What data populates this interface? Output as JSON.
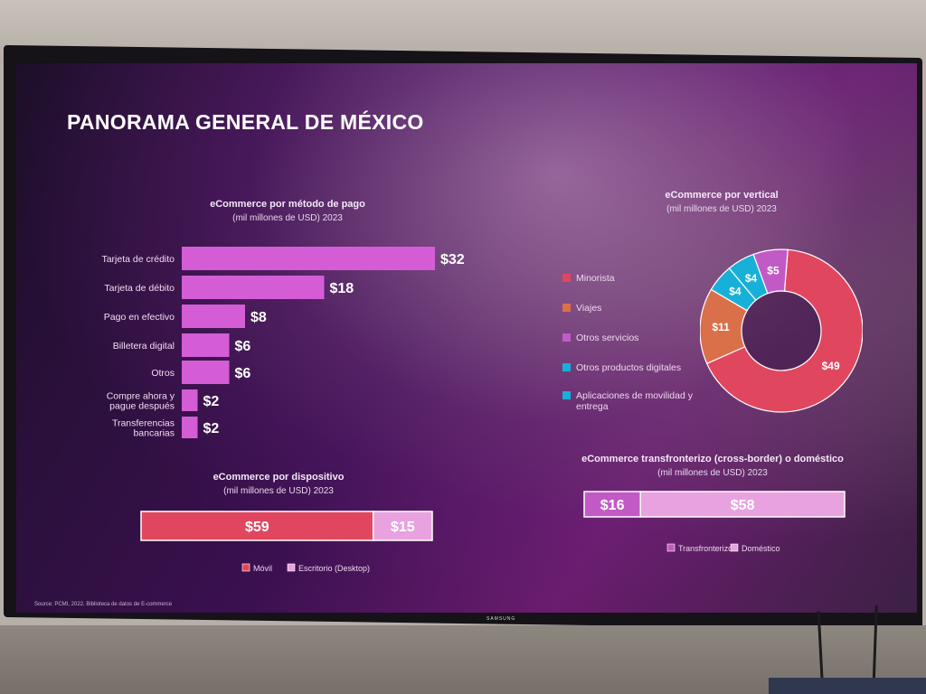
{
  "slide": {
    "title": "PANORAMA GENERAL DE MÉXICO",
    "source": "Source: PCMI, 2022. Biblioteca de datos de E-commerce",
    "brand": "SAMSUNG"
  },
  "colors": {
    "pink_bar": "#d45dd6",
    "red": "#e0475f",
    "orange": "#d9704a",
    "light_pink": "#e8a2e0",
    "cyan": "#18b0d8",
    "purple": "#c25ac6"
  },
  "chart_data": [
    {
      "type": "bar",
      "orientation": "horizontal",
      "title": "eCommerce por método de pago",
      "subtitle": "(mil millones de USD) 2023",
      "categories": [
        "Tarjeta de crédito",
        "Tarjeta de débito",
        "Pago en efectivo",
        "Billetera digital",
        "Otros",
        "Compre ahora y pague después",
        "Transferencias bancarias"
      ],
      "values": [
        32,
        18,
        8,
        6,
        6,
        2,
        2
      ],
      "labels": [
        "$32",
        "$18",
        "$8",
        "$6",
        "$6",
        "$2",
        "$2"
      ]
    },
    {
      "type": "pie",
      "title": "eCommerce por vertical",
      "subtitle": "(mil millones de USD) 2023",
      "slices": [
        {
          "name": "Minorista",
          "value": 49,
          "label": "$49",
          "color": "#e0475f"
        },
        {
          "name": "Viajes",
          "value": 11,
          "label": "$11",
          "color": "#d9704a"
        },
        {
          "name": "Otros servicios",
          "value": 5,
          "label": "$5",
          "color": "#c25ac6"
        },
        {
          "name": "Otros productos digitales",
          "value": 4,
          "label": "$4",
          "color": "#18b0d8"
        },
        {
          "name": "Aplicaciones de movilidad y entrega",
          "value": 4,
          "label": "$4",
          "color": "#18b0d8"
        }
      ]
    },
    {
      "type": "bar",
      "orientation": "stacked-horizontal",
      "title": "eCommerce por dispositivo",
      "subtitle": "(mil millones de USD) 2023",
      "series": [
        {
          "name": "Móvil",
          "value": 59,
          "label": "$59",
          "color": "#e0475f"
        },
        {
          "name": "Escritorio (Desktop)",
          "value": 15,
          "label": "$15",
          "color": "#e8a2e0"
        }
      ]
    },
    {
      "type": "bar",
      "orientation": "stacked-horizontal",
      "title": "eCommerce transfronterizo (cross-border) o doméstico",
      "subtitle": "(mil millones de USD) 2023",
      "series": [
        {
          "name": "Transfronterizo",
          "value": 16,
          "label": "$16",
          "color": "#c25ac6"
        },
        {
          "name": "Doméstico",
          "value": 58,
          "label": "$58",
          "color": "#e8a2e0"
        }
      ]
    }
  ]
}
